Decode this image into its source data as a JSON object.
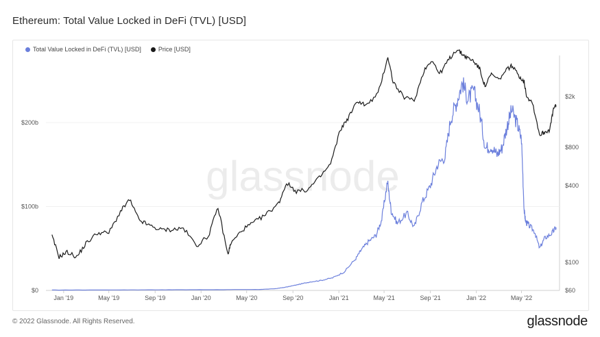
{
  "page": {
    "title": "Ethereum: Total Value Locked in DeFi (TVL) [USD]",
    "copyright": "© 2022 Glassnode. All Rights Reserved.",
    "logo": "glassnode",
    "watermark": "glassnode"
  },
  "colors": {
    "tvl": "#6b7fdc",
    "price": "#1a1a1a",
    "grid": "#f0f0f0",
    "axis": "#cfcfcf"
  },
  "chart_data": {
    "type": "line",
    "title": "Ethereum: Total Value Locked in DeFi (TVL) [USD]",
    "xlabel": "",
    "x_ticks": [
      "Jan '19",
      "May '19",
      "Sep '19",
      "Jan '20",
      "May '20",
      "Sep '20",
      "Jan '21",
      "May '21",
      "Sep '21",
      "Jan '22",
      "May '22"
    ],
    "y_left": {
      "ticks": [
        "$0",
        "$100b",
        "$200b"
      ],
      "tick_values": [
        0,
        100,
        200
      ],
      "unit": "billion USD",
      "range": [
        0,
        280
      ]
    },
    "y_right": {
      "scale": "log",
      "ticks": [
        "$60",
        "$100",
        "$400",
        "$800",
        "$2k"
      ],
      "tick_values": [
        60,
        100,
        400,
        800,
        2000
      ],
      "range": [
        60,
        4200
      ]
    },
    "legend": [
      {
        "name": "Total Value Locked in DeFi (TVL) [USD]",
        "color": "#6b7fdc"
      },
      {
        "name": "Price [USD]",
        "color": "#1a1a1a"
      }
    ],
    "legend_position": "top-left",
    "grid": false,
    "series": [
      {
        "name": "Total Value Locked in DeFi (TVL) [USD]",
        "axis": "left",
        "x": [
          "2018-12-01",
          "2019-03-01",
          "2019-06-01",
          "2019-09-01",
          "2019-12-01",
          "2020-03-01",
          "2020-06-01",
          "2020-07-15",
          "2020-08-15",
          "2020-09-15",
          "2020-10-15",
          "2020-11-15",
          "2020-12-15",
          "2021-01-15",
          "2021-02-15",
          "2021-03-01",
          "2021-03-20",
          "2021-04-10",
          "2021-04-25",
          "2021-05-10",
          "2021-05-20",
          "2021-06-05",
          "2021-07-01",
          "2021-07-20",
          "2021-08-10",
          "2021-09-01",
          "2021-09-20",
          "2021-10-10",
          "2021-10-25",
          "2021-11-10",
          "2021-11-25",
          "2021-12-10",
          "2021-12-25",
          "2022-01-10",
          "2022-01-25",
          "2022-02-10",
          "2022-02-25",
          "2022-03-10",
          "2022-03-25",
          "2022-04-05",
          "2022-04-20",
          "2022-05-01",
          "2022-05-08",
          "2022-05-12",
          "2022-05-20",
          "2022-06-05",
          "2022-06-18",
          "2022-07-01",
          "2022-07-20",
          "2022-08-01"
        ],
        "values": [
          0.4,
          0.5,
          0.6,
          0.7,
          0.8,
          0.9,
          1.1,
          2.0,
          4.0,
          7.0,
          10.0,
          12.0,
          15.0,
          22.0,
          38.0,
          48.0,
          58.0,
          66.0,
          85.0,
          130.0,
          95.0,
          80.0,
          92.0,
          75.0,
          105.0,
          125.0,
          150.0,
          160.0,
          205.0,
          225.0,
          248.0,
          228.0,
          238.0,
          212.0,
          170.0,
          172.0,
          162.0,
          170.0,
          198.0,
          215.0,
          198.0,
          180.0,
          95.0,
          82.0,
          78.0,
          70.0,
          50.0,
          62.0,
          68.0,
          75.0
        ]
      },
      {
        "name": "Price [USD]",
        "axis": "right",
        "x": [
          "2018-12-01",
          "2018-12-20",
          "2019-01-10",
          "2019-02-05",
          "2019-03-01",
          "2019-04-01",
          "2019-05-01",
          "2019-06-01",
          "2019-06-25",
          "2019-07-20",
          "2019-08-15",
          "2019-09-15",
          "2019-10-15",
          "2019-11-15",
          "2019-12-20",
          "2020-01-20",
          "2020-02-15",
          "2020-03-12",
          "2020-03-20",
          "2020-04-20",
          "2020-05-20",
          "2020-06-20",
          "2020-07-25",
          "2020-08-15",
          "2020-09-10",
          "2020-10-10",
          "2020-11-10",
          "2020-12-10",
          "2021-01-05",
          "2021-01-25",
          "2021-02-20",
          "2021-03-15",
          "2021-04-15",
          "2021-05-11",
          "2021-05-25",
          "2021-06-20",
          "2021-07-20",
          "2021-08-15",
          "2021-09-05",
          "2021-09-25",
          "2021-10-20",
          "2021-11-10",
          "2021-11-25",
          "2021-12-10",
          "2021-12-25",
          "2022-01-10",
          "2022-01-24",
          "2022-02-10",
          "2022-03-01",
          "2022-03-25",
          "2022-04-05",
          "2022-04-25",
          "2022-05-08",
          "2022-05-15",
          "2022-05-30",
          "2022-06-18",
          "2022-07-01",
          "2022-07-15",
          "2022-07-25",
          "2022-08-01"
        ],
        "values": [
          160,
          110,
          120,
          110,
          140,
          170,
          170,
          250,
          310,
          215,
          195,
          180,
          180,
          185,
          135,
          160,
          270,
          115,
          140,
          180,
          205,
          235,
          290,
          420,
          360,
          370,
          460,
          590,
          1100,
          1350,
          1850,
          1700,
          2100,
          4100,
          2600,
          2000,
          1850,
          3200,
          3900,
          3000,
          3900,
          4700,
          4300,
          4000,
          3800,
          3300,
          2400,
          3000,
          2700,
          3300,
          3500,
          2900,
          2600,
          2000,
          1800,
          1000,
          1050,
          1100,
          1600,
          1700
        ]
      }
    ]
  }
}
